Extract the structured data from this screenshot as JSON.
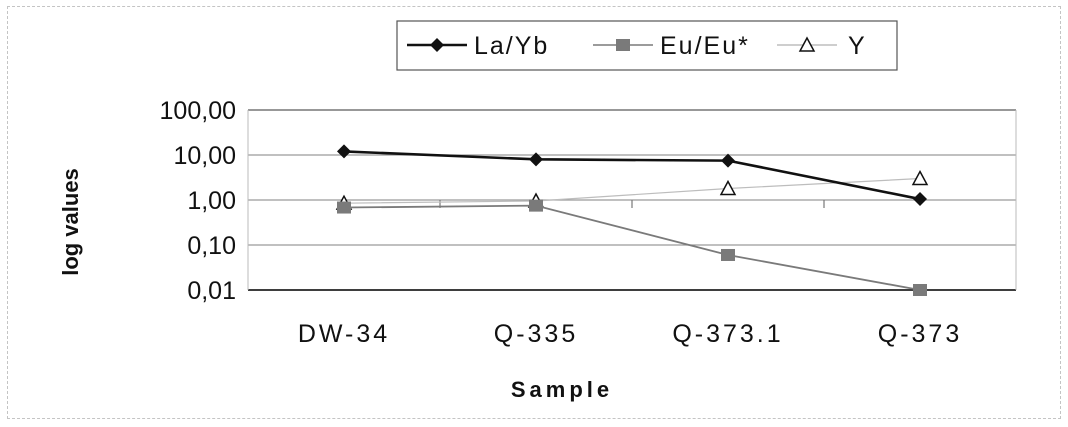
{
  "chart_data": {
    "type": "line",
    "title": "",
    "xlabel": "Sample",
    "ylabel": "log values",
    "y_scale": "log",
    "ylim": [
      0.01,
      100
    ],
    "grid": "horizontal",
    "legend_position": "top",
    "categories": [
      "DW-34",
      "Q-335",
      "Q-373.1",
      "Q-373"
    ],
    "y_ticks": [
      100,
      10,
      1,
      0.1,
      0.01
    ],
    "y_tick_labels": [
      "100,00",
      "10,00",
      "1,00",
      "0,10",
      "0,01"
    ],
    "series": [
      {
        "name": "La/Yb",
        "marker": "diamond",
        "color": "#111111",
        "values": [
          12.0,
          8.0,
          7.5,
          1.05
        ]
      },
      {
        "name": "Eu/Eu*",
        "marker": "square",
        "color": "#7a7a7a",
        "values": [
          0.68,
          0.75,
          0.06,
          0.01
        ]
      },
      {
        "name": "Y",
        "marker": "triangle",
        "color": "#bdbdbd",
        "values": [
          0.85,
          0.95,
          1.8,
          3.0
        ]
      }
    ]
  }
}
